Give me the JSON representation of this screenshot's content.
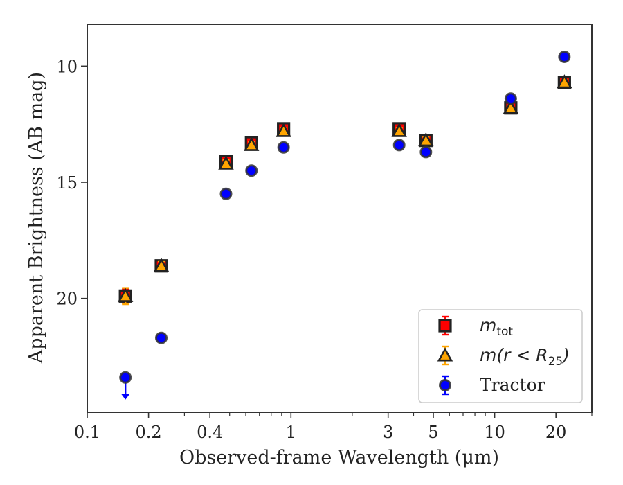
{
  "chart_data": {
    "type": "scatter",
    "xlabel": "Observed-frame Wavelength (μm)",
    "ylabel": "Apparent Brightness (AB mag)",
    "xscale": "log",
    "xlim": [
      0.1,
      30
    ],
    "ylim": [
      24.9,
      8.2
    ],
    "y_inverted": true,
    "x_ticks": [
      0.1,
      0.2,
      0.4,
      1,
      3,
      5,
      10,
      20
    ],
    "x_tick_labels": [
      "0.1",
      "0.2",
      "0.4",
      "1",
      "3",
      "5",
      "10",
      "20"
    ],
    "y_ticks": [
      10,
      15,
      20
    ],
    "y_tick_labels": [
      "10",
      "15",
      "20"
    ],
    "legend_position": "lower-right",
    "series": [
      {
        "name": "m_tot",
        "legend_label": {
          "main": "m",
          "sub": "tot"
        },
        "marker": "square",
        "color": "#ff0000",
        "edge": "#222222",
        "points": [
          {
            "x": 0.154,
            "y": 19.9,
            "err": 0.3
          },
          {
            "x": 0.231,
            "y": 18.6,
            "err": 0.2
          },
          {
            "x": 0.48,
            "y": 14.1,
            "err": 0.15
          },
          {
            "x": 0.64,
            "y": 13.3,
            "err": 0.15
          },
          {
            "x": 0.92,
            "y": 12.7,
            "err": 0.15
          },
          {
            "x": 3.4,
            "y": 12.7,
            "err": 0.15
          },
          {
            "x": 4.6,
            "y": 13.2,
            "err": 0.15
          },
          {
            "x": 12.0,
            "y": 11.8,
            "err": 0.1
          },
          {
            "x": 22.0,
            "y": 10.7,
            "err": 0.1
          }
        ]
      },
      {
        "name": "m(r<R_25)",
        "legend_label": {
          "main": "m(r < R",
          "sub": "25",
          "tail": ")"
        },
        "marker": "triangle",
        "color": "#ffa500",
        "edge": "#222222",
        "points": [
          {
            "x": 0.154,
            "y": 19.9,
            "err": 0.35
          },
          {
            "x": 0.231,
            "y": 18.6,
            "err": 0.2
          },
          {
            "x": 0.48,
            "y": 14.2,
            "err": 0.15
          },
          {
            "x": 0.64,
            "y": 13.4,
            "err": 0.15
          },
          {
            "x": 0.92,
            "y": 12.8,
            "err": 0.15
          },
          {
            "x": 3.4,
            "y": 12.8,
            "err": 0.15
          },
          {
            "x": 4.6,
            "y": 13.2,
            "err": 0.15
          },
          {
            "x": 12.0,
            "y": 11.8,
            "err": 0.1
          },
          {
            "x": 22.0,
            "y": 10.7,
            "err": 0.1
          }
        ]
      },
      {
        "name": "Tractor",
        "legend_label": {
          "main": "Tractor"
        },
        "marker": "circle",
        "color": "#0000ff",
        "edge": "#333333",
        "points": [
          {
            "x": 0.154,
            "y": 23.4,
            "err": 0.0,
            "upper_limit": true
          },
          {
            "x": 0.231,
            "y": 21.7,
            "err": 0.05
          },
          {
            "x": 0.48,
            "y": 15.5,
            "err": 0.05
          },
          {
            "x": 0.64,
            "y": 14.5,
            "err": 0.05
          },
          {
            "x": 0.92,
            "y": 13.5,
            "err": 0.05
          },
          {
            "x": 3.4,
            "y": 13.4,
            "err": 0.05
          },
          {
            "x": 4.6,
            "y": 13.7,
            "err": 0.05
          },
          {
            "x": 12.0,
            "y": 11.4,
            "err": 0.1
          },
          {
            "x": 22.0,
            "y": 9.6,
            "err": 0.05
          }
        ]
      }
    ]
  }
}
